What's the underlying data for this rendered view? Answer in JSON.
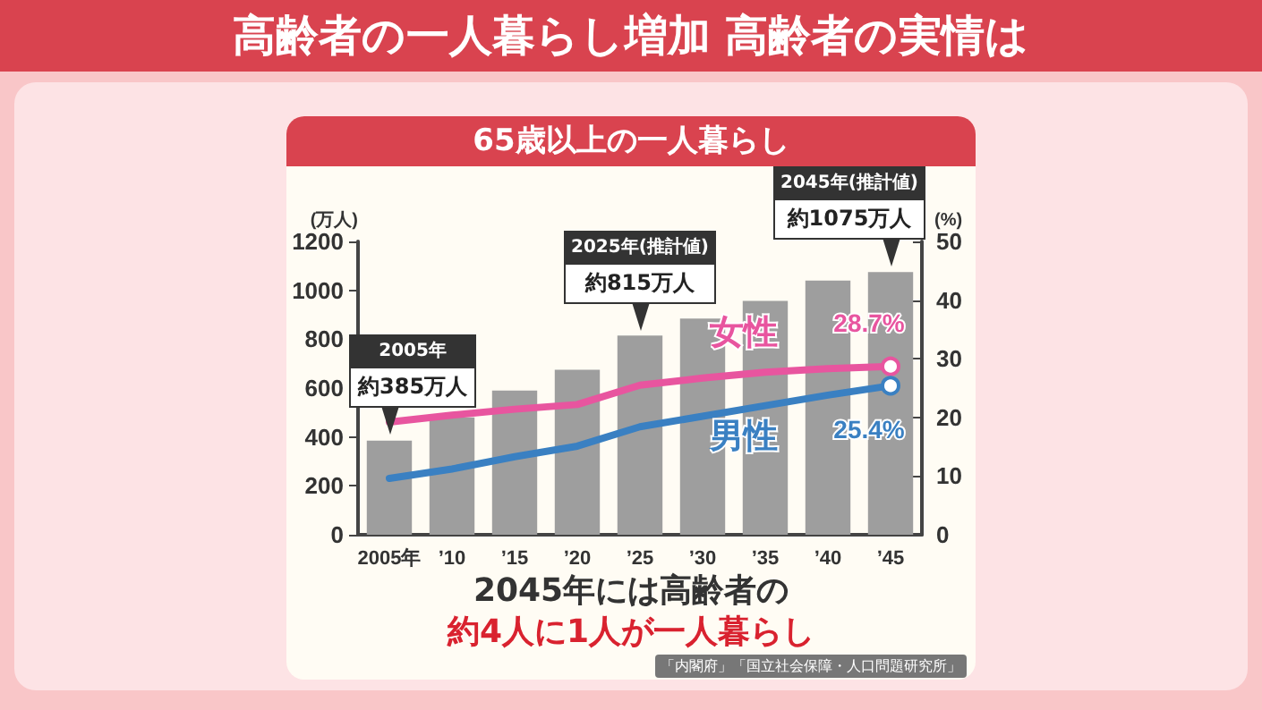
{
  "chart_data": {
    "type": "bar",
    "title": "高齢者の一人暮らし増加 高齢者の実情は",
    "subtitle": "65歳以上の一人暮らし",
    "ylabel": "(万人)",
    "y2label": "(%)",
    "categories": [
      "2005年",
      "’10",
      "’15",
      "’20",
      "’25",
      "’30",
      "’35",
      "’40",
      "’45"
    ],
    "series": [
      {
        "color": "#9e9e9e",
        "values": [
          385,
          480,
          590,
          675,
          815,
          884,
          957,
          1040,
          1075
        ],
        "value_labels": [
          "約385万人",
          null,
          null,
          null,
          "約815万人",
          null,
          null,
          null,
          "約1075万人"
        ]
      },
      {
        "type": "line",
        "name": "女性",
        "axis": "y2",
        "color": "#e8559f",
        "values": [
          19.2,
          20.4,
          21.4,
          22.2,
          25.5,
          26.7,
          27.7,
          28.3,
          28.7
        ],
        "value_labels": [
          null,
          null,
          null,
          null,
          null,
          null,
          null,
          null,
          "28.7%"
        ]
      },
      {
        "type": "line",
        "name": "男性",
        "axis": "y2",
        "color": "#3a80c2",
        "values": [
          9.6,
          11.2,
          13.3,
          15.1,
          18.4,
          20.2,
          22.0,
          23.8,
          25.4
        ],
        "value_labels": [
          null,
          null,
          null,
          null,
          null,
          null,
          null,
          null,
          "25.4%"
        ]
      }
    ],
    "ylim": [
      0,
      1200
    ],
    "yticks": [
      0,
      200,
      400,
      600,
      800,
      1000,
      1200
    ],
    "y2lim": [
      0,
      50
    ],
    "y2ticks": [
      0,
      10,
      20,
      30,
      40,
      50
    ],
    "grid": false,
    "legend": false,
    "annotations": [
      "2045年には高齢者の",
      "約4人に1人が一人暮らし",
      "「内閣府」「国立社会保障・人口問題研究所」",
      "2005年",
      "2025年(推計値)",
      "2045年(推計値)"
    ]
  }
}
